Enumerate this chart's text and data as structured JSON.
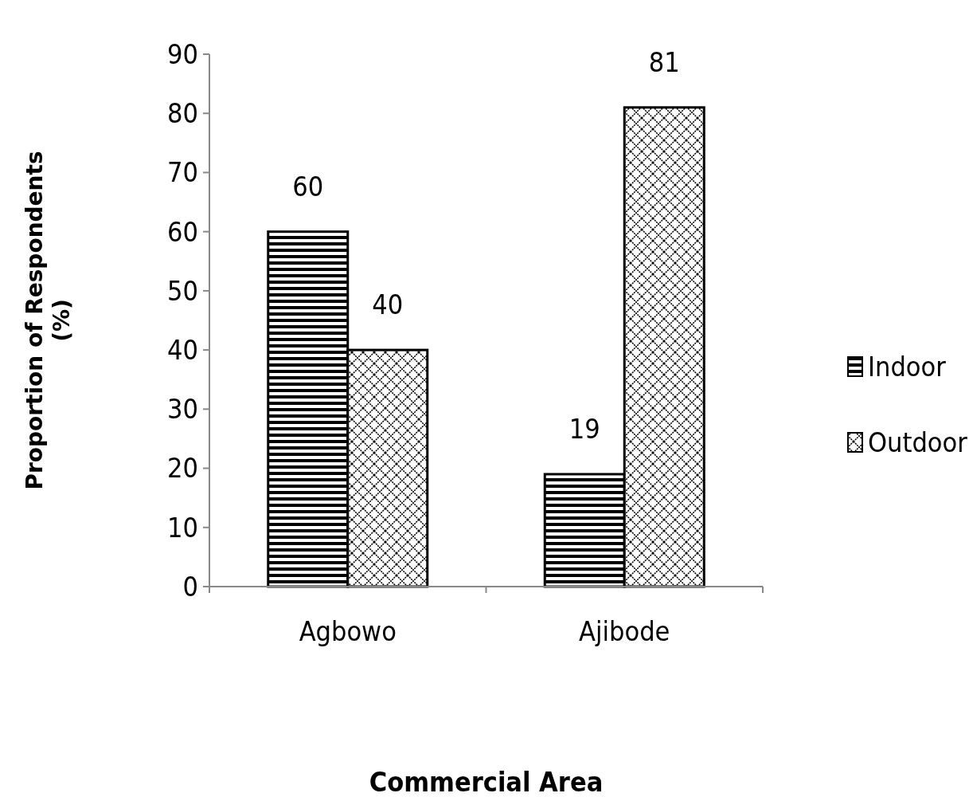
{
  "chart_data": {
    "type": "bar",
    "xlabel": "Commercial Area",
    "ylabel": "Proportion of Respondents (%)",
    "categories": [
      "Agbowo",
      "Ajibode"
    ],
    "series": [
      {
        "name": "Indoor",
        "color": "#000000",
        "values": [
          60,
          19
        ]
      },
      {
        "name": "Outdoor",
        "color": "#000000",
        "values": [
          40,
          81
        ]
      }
    ],
    "ylim": [
      0,
      90
    ],
    "yticks": [
      0,
      10,
      20,
      30,
      40,
      50,
      60,
      70,
      80,
      90
    ],
    "data_labels": true,
    "legend": "right",
    "grid": false
  }
}
